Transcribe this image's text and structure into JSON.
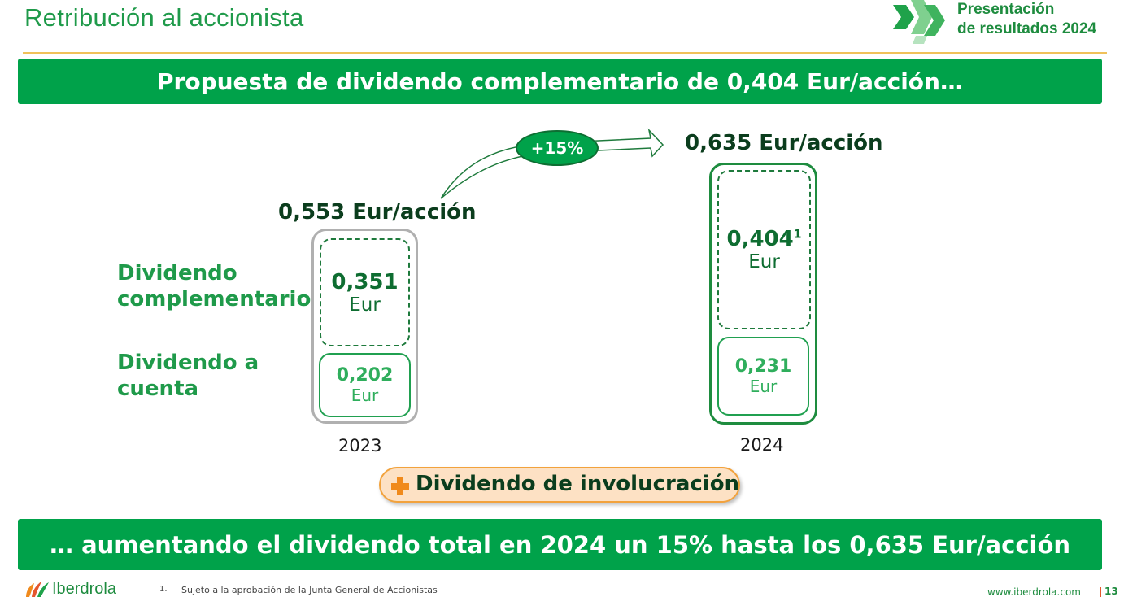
{
  "header": {
    "title": "Retribución al accionista",
    "badge_line1": "Presentación",
    "badge_line2": "de resultados 2024"
  },
  "banner_top": "Propuesta de dividendo complementario de 0,404 Eur/acción…",
  "legend": {
    "complementario_line1": "Dividendo",
    "complementario_line2": "complementario",
    "a_cuenta_line1": "Dividendo a",
    "a_cuenta_line2": "cuenta"
  },
  "y2023": {
    "total": "0,553 Eur/acción",
    "complementario": "0,351",
    "complementario_unit": "Eur",
    "a_cuenta": "0,202",
    "a_cuenta_unit": "Eur",
    "year": "2023"
  },
  "y2024": {
    "total": "0,635 Eur/acción",
    "complementario": "0,404",
    "complementario_sup": "1",
    "complementario_unit": "Eur",
    "a_cuenta": "0,231",
    "a_cuenta_unit": "Eur",
    "year": "2024"
  },
  "growth": "+15%",
  "involucracion": "Dividendo de involucración",
  "banner_bottom": "… aumentando el dividendo total en 2024 un 15% hasta los 0,635 Eur/acción",
  "footer": {
    "logo": "Iberdrola",
    "footnote_num": "1.",
    "footnote": "Sujeto a la aprobación de la Junta General de Accionistas",
    "website": "www.iberdrola.com",
    "page": "13"
  },
  "colors": {
    "brand_green": "#00a24a",
    "dark_green": "#0e6d31",
    "accent_orange": "#f08a1c"
  }
}
